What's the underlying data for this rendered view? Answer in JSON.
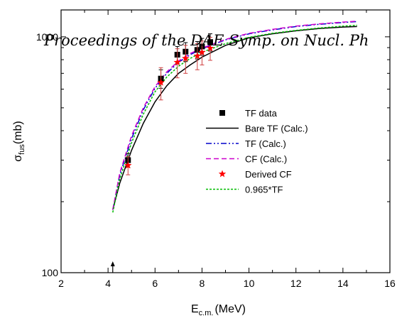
{
  "header": {
    "text": "Proceedings of the DAE Symp. on Nucl. Ph"
  },
  "chart_data": {
    "type": "line",
    "xlabel": "E",
    "xlabel_sub": "c.m.",
    "xlabel_unit": "(MeV)",
    "ylabel": "σ",
    "ylabel_sub": "fus",
    "ylabel_unit": "(mb)",
    "xlim": [
      2,
      16
    ],
    "ylim": [
      100,
      1300
    ],
    "yscale": "log",
    "xticks": [
      2,
      4,
      6,
      8,
      10,
      12,
      14,
      16
    ],
    "yticks": [
      100,
      1000
    ],
    "grid": false,
    "legend_position": "center-right",
    "barrier_arrow_x": 4.2,
    "series": [
      {
        "name": "TF data",
        "kind": "points",
        "marker": "square",
        "color": "#000000",
        "x": [
          4.85,
          6.25,
          6.95,
          7.3,
          7.8,
          8.0,
          8.35
        ],
        "y": [
          300,
          665,
          840,
          865,
          880,
          910,
          950
        ],
        "err": [
          20,
          60,
          70,
          80,
          75,
          75,
          80
        ]
      },
      {
        "name": "Bare TF (Calc.)",
        "kind": "line",
        "dash": "",
        "color": "#000000",
        "x": [
          4.2,
          4.5,
          5.0,
          5.5,
          6.0,
          6.5,
          7.0,
          7.5,
          8.0,
          9.0,
          10.0,
          11.0,
          12.0,
          13.0,
          14.0,
          14.6
        ],
        "y": [
          185,
          240,
          330,
          430,
          530,
          620,
          700,
          760,
          820,
          920,
          990,
          1030,
          1060,
          1085,
          1100,
          1105
        ]
      },
      {
        "name": "TF (Calc.)",
        "kind": "line",
        "dash": "8,3,2,3,2,3",
        "color": "#0000cc",
        "x": [
          4.2,
          4.5,
          5.0,
          5.5,
          6.0,
          6.5,
          7.0,
          7.5,
          8.0,
          9.0,
          10.0,
          11.0,
          12.0,
          13.0,
          14.0,
          14.6
        ],
        "y": [
          185,
          260,
          370,
          490,
          605,
          700,
          780,
          840,
          890,
          970,
          1030,
          1070,
          1105,
          1130,
          1150,
          1160
        ]
      },
      {
        "name": "CF (Calc.)",
        "kind": "line",
        "dash": "7,4",
        "color": "#cc00cc",
        "x": [
          4.2,
          4.5,
          5.0,
          5.5,
          6.0,
          6.5,
          7.0,
          7.5,
          8.0,
          9.0,
          10.0,
          11.0,
          12.0,
          13.0,
          14.0,
          14.6
        ],
        "y": [
          185,
          265,
          380,
          500,
          615,
          710,
          790,
          850,
          895,
          975,
          1035,
          1075,
          1110,
          1135,
          1155,
          1165
        ]
      },
      {
        "name": "Derived CF",
        "kind": "points",
        "marker": "star",
        "color": "#ff0000",
        "x": [
          4.85,
          6.25,
          6.95,
          7.3,
          7.8,
          8.0,
          8.35
        ],
        "y": [
          285,
          640,
          780,
          810,
          830,
          860,
          895
        ],
        "err": [
          25,
          100,
          110,
          110,
          105,
          100,
          100
        ],
        "err_color": "#d04040"
      },
      {
        "name": "0.965*TF",
        "kind": "line",
        "dash": "3,2",
        "color": "#00bb00",
        "x": [
          4.2,
          4.5,
          5.0,
          5.5,
          6.0,
          6.5,
          7.0,
          7.5,
          8.0,
          9.0,
          10.0,
          11.0,
          12.0,
          13.0,
          14.0,
          14.6
        ],
        "y": [
          180,
          250,
          355,
          470,
          585,
          675,
          750,
          810,
          860,
          935,
          995,
          1035,
          1065,
          1090,
          1110,
          1120
        ]
      }
    ]
  }
}
